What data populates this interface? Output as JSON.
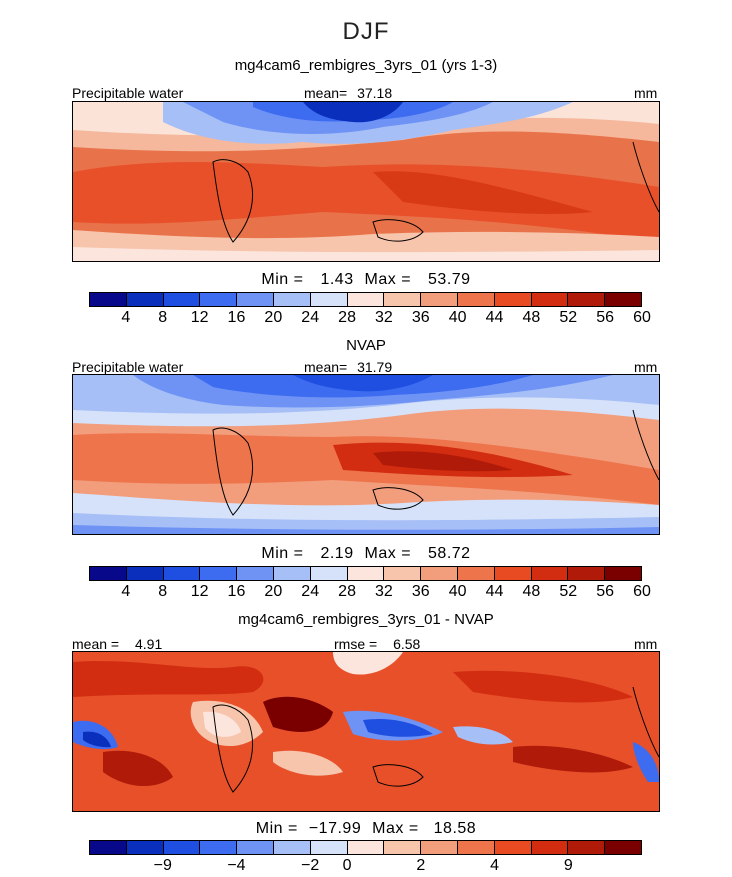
{
  "figure_title": "DJF",
  "chart_data": [
    {
      "type": "heatmap",
      "title": "mg4cam6_rembigres_3yrs_01 (yrs 1-3)",
      "variable_label": "Precipitable water",
      "mean_label": "mean=",
      "mean_value": "37.18",
      "units": "mm",
      "min_label": "Min =",
      "min_value": "1.43",
      "max_label": "Max =",
      "max_value": "53.79",
      "colorbar_ticks": [
        "4",
        "8",
        "12",
        "16",
        "20",
        "24",
        "28",
        "32",
        "36",
        "40",
        "44",
        "48",
        "52",
        "56",
        "60"
      ],
      "colorbar_range": [
        0,
        64
      ]
    },
    {
      "type": "heatmap",
      "title": "NVAP",
      "variable_label": "Precipitable water",
      "mean_label": "mean=",
      "mean_value": "31.79",
      "units": "mm",
      "min_label": "Min =",
      "min_value": "2.19",
      "max_label": "Max =",
      "max_value": "58.72",
      "colorbar_ticks": [
        "4",
        "8",
        "12",
        "16",
        "20",
        "24",
        "28",
        "32",
        "36",
        "40",
        "44",
        "48",
        "52",
        "56",
        "60"
      ],
      "colorbar_range": [
        0,
        64
      ]
    },
    {
      "type": "heatmap",
      "title": "mg4cam6_rembigres_3yrs_01 - NVAP",
      "mean_label": "mean =",
      "mean_value": "4.91",
      "rmse_label": "rmse =",
      "rmse_value": "6.58",
      "units": "mm",
      "min_label": "Min =",
      "min_value": "−17.99",
      "max_label": "Max =",
      "max_value": "18.58",
      "colorbar_ticks": [
        "−9",
        "−4",
        "−2",
        "0",
        "2",
        "4",
        "9"
      ]
    }
  ],
  "colors": {
    "colorbar": [
      "#08088a",
      "#0a2fbd",
      "#1f4fe0",
      "#3d6cf0",
      "#6e93f5",
      "#a7bff7",
      "#d6e2f9",
      "#fbe5dc",
      "#f7c4ac",
      "#f29d7c",
      "#ee744c",
      "#e84a22",
      "#d22d10",
      "#b01a08",
      "#7a0000"
    ]
  }
}
